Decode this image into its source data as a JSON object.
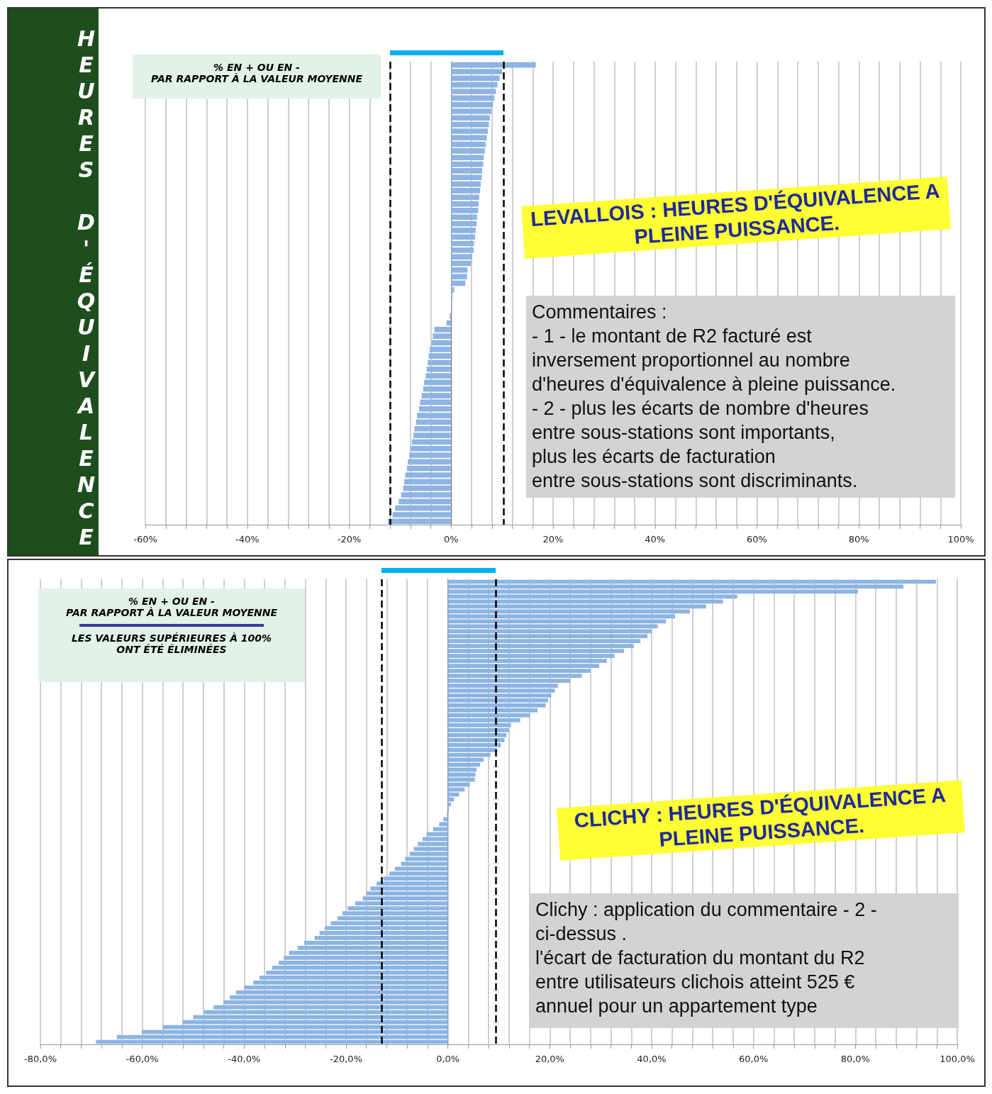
{
  "chart_data": [
    {
      "type": "bar",
      "orientation": "horizontal",
      "title": "LEVALLOIS : HEURES D'ÉQUIVALENCE A PLEINE PUISSANCE.",
      "ylabel": "HEURES D'ÉQUIVALENCE",
      "xlabel": "% EN + OU EN -\nPAR RAPPORT À LA VALEUR MOYENNE",
      "annotations": [
        "Commentaires :\n- 1 - le montant de R2 facturé est\ninversement proportionnel au nombre\nd'heures d'équivalence à pleine puissance.\n- 2 - plus les écarts de nombre d'heures\nentre sous-stations sont importants,\nplus les écarts de facturation\nentre sous-stations sont discriminants."
      ],
      "categories": [
        null,
        null,
        null,
        null,
        null,
        null,
        null,
        null,
        null,
        null,
        null,
        null,
        null,
        null,
        null,
        null,
        null,
        null,
        null,
        null,
        null,
        null,
        null,
        null,
        null,
        null,
        null,
        null,
        null,
        null,
        null,
        null,
        null,
        null,
        null,
        null,
        null,
        null,
        null,
        null,
        null,
        null,
        null,
        null,
        null,
        null,
        null,
        null,
        null,
        null,
        null,
        null,
        null,
        null,
        null,
        null,
        null,
        null,
        null,
        null,
        null,
        null,
        null,
        null,
        null,
        null,
        null,
        null,
        null,
        null
      ],
      "series": [
        {
          "color": "#8db4e2",
          "values": [
            16.6,
            10.0,
            9.5,
            9.1,
            8.8,
            8.5,
            8.2,
            7.9,
            7.6,
            7.4,
            7.2,
            7.0,
            6.8,
            6.6,
            6.4,
            6.3,
            6.1,
            6.0,
            5.8,
            5.7,
            5.5,
            5.4,
            5.3,
            5.1,
            5.0,
            4.8,
            4.7,
            4.5,
            4.4,
            4.1,
            3.9,
            3.2,
            3.1,
            2.8,
            0.6,
            0.2,
            0.1,
            null,
            -0.3,
            -0.9,
            -3.3,
            -3.6,
            -3.9,
            -4.2,
            -4.4,
            -4.6,
            -4.8,
            -5.0,
            -5.3,
            -5.5,
            -5.8,
            -6.1,
            -6.3,
            -6.7,
            -6.9,
            -7.2,
            -7.4,
            -7.7,
            -8.0,
            -8.2,
            -8.5,
            -8.7,
            -9.0,
            -9.2,
            -9.4,
            -9.8,
            -10.3,
            -11.0,
            -11.5,
            -12.4
          ]
        }
      ],
      "xlim": [
        -60,
        100
      ],
      "xticks": [
        {
          "value": -60,
          "label": "-60%"
        },
        {
          "value": -56,
          "label": null
        },
        {
          "value": -52,
          "label": null
        },
        {
          "value": -48,
          "label": null
        },
        {
          "value": -44,
          "label": null
        },
        {
          "value": -40,
          "label": "-40%"
        },
        {
          "value": -36,
          "label": null
        },
        {
          "value": -32,
          "label": null
        },
        {
          "value": -28,
          "label": null
        },
        {
          "value": -24,
          "label": null
        },
        {
          "value": -20,
          "label": "-20%"
        },
        {
          "value": -16,
          "label": null
        },
        {
          "value": -12,
          "label": null
        },
        {
          "value": -8,
          "label": null
        },
        {
          "value": -4,
          "label": null
        },
        {
          "value": 0,
          "label": "0%"
        },
        {
          "value": 4,
          "label": null
        },
        {
          "value": 8,
          "label": null
        },
        {
          "value": 12,
          "label": null
        },
        {
          "value": 16,
          "label": null
        },
        {
          "value": 20,
          "label": "20%"
        },
        {
          "value": 24,
          "label": null
        },
        {
          "value": 28,
          "label": null
        },
        {
          "value": 32,
          "label": null
        },
        {
          "value": 36,
          "label": null
        },
        {
          "value": 40,
          "label": "40%"
        },
        {
          "value": 44,
          "label": null
        },
        {
          "value": 48,
          "label": null
        },
        {
          "value": 52,
          "label": null
        },
        {
          "value": 56,
          "label": null
        },
        {
          "value": 60,
          "label": "60%"
        },
        {
          "value": 64,
          "label": null
        },
        {
          "value": 68,
          "label": null
        },
        {
          "value": 72,
          "label": null
        },
        {
          "value": 76,
          "label": null
        },
        {
          "value": 80,
          "label": "80%"
        },
        {
          "value": 84,
          "label": null
        },
        {
          "value": 88,
          "label": null
        },
        {
          "value": 92,
          "label": null
        },
        {
          "value": 96,
          "label": null
        },
        {
          "value": 100,
          "label": "100%"
        }
      ],
      "grid": "x",
      "ref_lines": [
        {
          "axis": "x",
          "value": -12,
          "color": "#000000",
          "line_style": "dashed"
        },
        {
          "axis": "x",
          "value": 10.3,
          "color": "#000000",
          "line_style": "dashed"
        }
      ]
    },
    {
      "type": "bar",
      "orientation": "horizontal",
      "title": "CLICHY : HEURES D'ÉQUIVALENCE A PLEINE PUISSANCE.",
      "xlabel": "% EN + OU EN -\nPAR RAPPORT À LA VALEUR MOYENNE",
      "annotations": [
        "LES VALEURS SUPÉRIEURES À 100%\nONT ÉTÉ ÉLIMINÉES",
        "Clichy : application du commentaire - 2 -\nci-dessus .\nl'écart de facturation du montant du R2\nentre utilisateurs clichois atteint 525 €\nannuel pour un appartement type"
      ],
      "categories": [
        null,
        null,
        null,
        null,
        null,
        null,
        null,
        null,
        null,
        null,
        null,
        null,
        null,
        null,
        null,
        null,
        null,
        null,
        null,
        null,
        null,
        null,
        null,
        null,
        null,
        null,
        null,
        null,
        null,
        null,
        null,
        null,
        null,
        null,
        null,
        null,
        null,
        null,
        null,
        null,
        null,
        null,
        null,
        null,
        null,
        null,
        null,
        null,
        null,
        null,
        null,
        null,
        null,
        null,
        null,
        null,
        null,
        null,
        null,
        null,
        null,
        null,
        null,
        null,
        null,
        null,
        null,
        null,
        null,
        null,
        null,
        null,
        null,
        null,
        null,
        null,
        null,
        null,
        null,
        null,
        null,
        null,
        null,
        null,
        null,
        null,
        null,
        null,
        null,
        null,
        null,
        null,
        null,
        null
      ],
      "series": [
        {
          "color": "#8db4e2",
          "values": [
            95.8,
            89.4,
            80.5,
            56.8,
            54.0,
            50.7,
            47.5,
            44.6,
            42.8,
            41.2,
            40.0,
            39.2,
            37.8,
            36.5,
            34.6,
            32.7,
            31.2,
            29.7,
            28.0,
            26.3,
            24.0,
            21.6,
            21.0,
            20.3,
            19.7,
            19.2,
            17.6,
            16.1,
            14.2,
            12.4,
            12.0,
            11.5,
            11.1,
            10.4,
            9.7,
            8.4,
            7.0,
            6.3,
            5.6,
            5.4,
            5.3,
            4.3,
            3.3,
            2.2,
            1.2,
            0.6,
            0.2,
            -0.2,
            -0.9,
            -1.7,
            -2.9,
            -4.2,
            -5.0,
            -5.9,
            -6.7,
            -7.5,
            -8.4,
            -9.2,
            -10.4,
            -11.5,
            -12.7,
            -14.0,
            -15.2,
            -16.0,
            -16.7,
            -18.2,
            -19.7,
            -20.7,
            -21.7,
            -23.0,
            -24.2,
            -25.2,
            -26.2,
            -28.2,
            -29.5,
            -31.2,
            -32.2,
            -33.2,
            -34.5,
            -35.7,
            -37.0,
            -38.2,
            -40.0,
            -41.6,
            -42.8,
            -44.1,
            -46.0,
            -47.9,
            -50.0,
            -52.1,
            -56.0,
            -60.1,
            -65.0,
            -69.1
          ]
        }
      ],
      "xlim": [
        -80,
        100
      ],
      "xticks": [
        {
          "value": -80,
          "label": "-80,0%"
        },
        {
          "value": -76,
          "label": null
        },
        {
          "value": -72,
          "label": null
        },
        {
          "value": -68,
          "label": null
        },
        {
          "value": -64,
          "label": null
        },
        {
          "value": -60,
          "label": "-60,0%"
        },
        {
          "value": -56,
          "label": null
        },
        {
          "value": -52,
          "label": null
        },
        {
          "value": -48,
          "label": null
        },
        {
          "value": -44,
          "label": null
        },
        {
          "value": -40,
          "label": "-40,0%"
        },
        {
          "value": -36,
          "label": null
        },
        {
          "value": -32,
          "label": null
        },
        {
          "value": -28,
          "label": null
        },
        {
          "value": -24,
          "label": null
        },
        {
          "value": -20,
          "label": "-20,0%"
        },
        {
          "value": -16,
          "label": null
        },
        {
          "value": -12,
          "label": null
        },
        {
          "value": -8,
          "label": null
        },
        {
          "value": -4,
          "label": null
        },
        {
          "value": 0,
          "label": "0,0%"
        },
        {
          "value": 4,
          "label": null
        },
        {
          "value": 8,
          "label": null
        },
        {
          "value": 12,
          "label": null
        },
        {
          "value": 16,
          "label": null
        },
        {
          "value": 20,
          "label": "20,0%"
        },
        {
          "value": 24,
          "label": null
        },
        {
          "value": 28,
          "label": null
        },
        {
          "value": 32,
          "label": null
        },
        {
          "value": 36,
          "label": null
        },
        {
          "value": 40,
          "label": "40,0%"
        },
        {
          "value": 44,
          "label": null
        },
        {
          "value": 48,
          "label": null
        },
        {
          "value": 52,
          "label": null
        },
        {
          "value": 56,
          "label": null
        },
        {
          "value": 60,
          "label": "60,0%"
        },
        {
          "value": 64,
          "label": null
        },
        {
          "value": 68,
          "label": null
        },
        {
          "value": 72,
          "label": null
        },
        {
          "value": 76,
          "label": null
        },
        {
          "value": 80,
          "label": "80,0%"
        },
        {
          "value": 84,
          "label": null
        },
        {
          "value": 88,
          "label": null
        },
        {
          "value": 92,
          "label": null
        },
        {
          "value": 96,
          "label": null
        },
        {
          "value": 100,
          "label": "100,0%"
        }
      ],
      "grid": "x",
      "ref_lines": [
        {
          "axis": "x",
          "value": -13,
          "color": "#000000",
          "line_style": "dashed"
        },
        {
          "axis": "x",
          "value": 9.4,
          "color": "#000000",
          "line_style": "dashed"
        }
      ]
    }
  ]
}
